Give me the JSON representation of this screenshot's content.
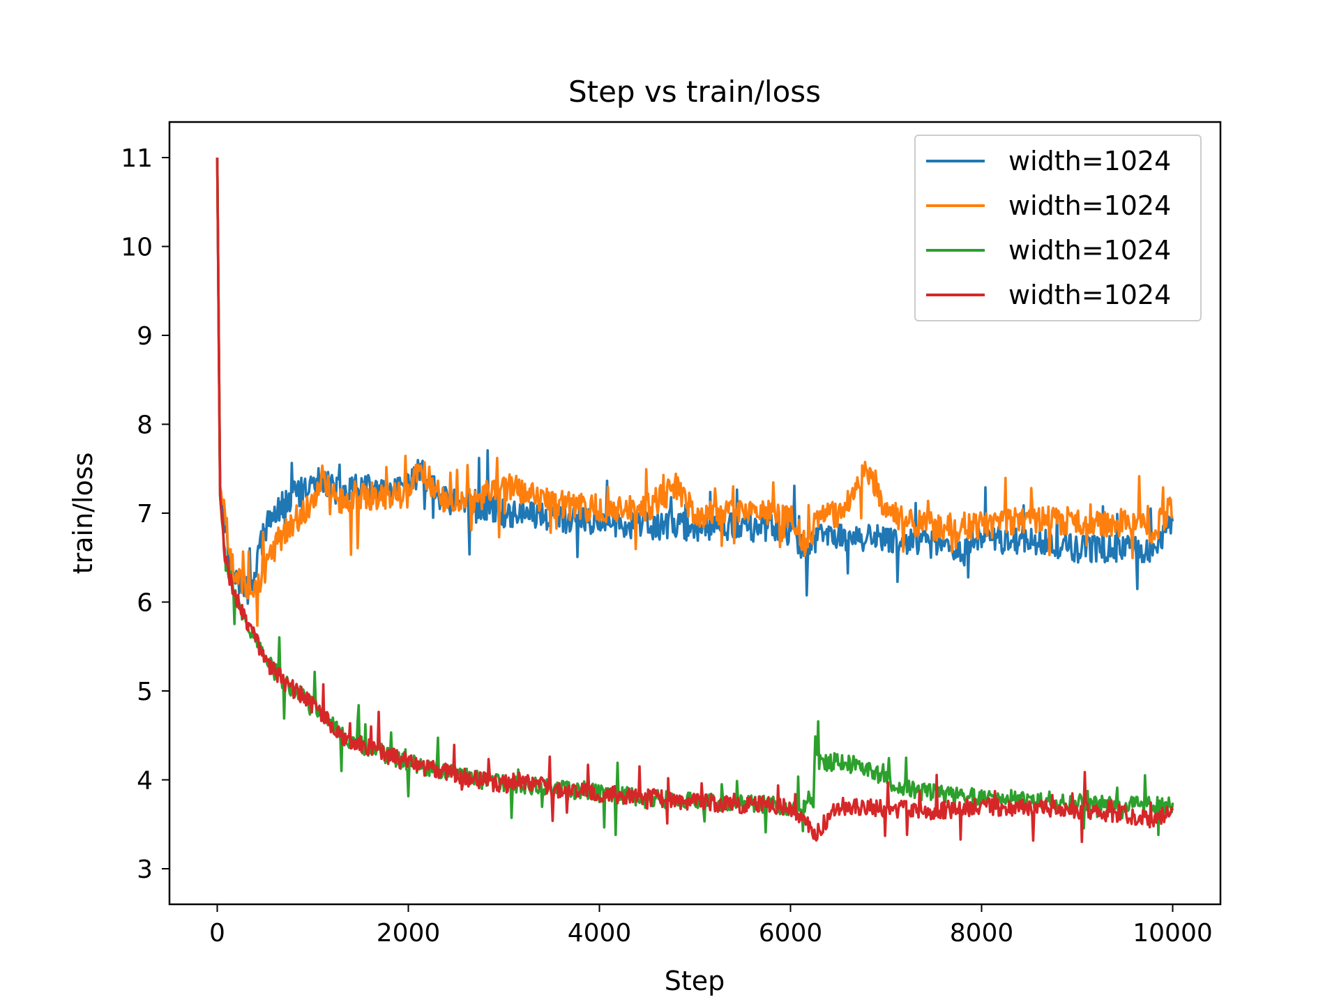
{
  "chart_data": {
    "type": "line",
    "title": "Step vs train/loss",
    "xlabel": "Step",
    "ylabel": "train/loss",
    "xlim": [
      -500,
      10500
    ],
    "ylim": [
      2.6,
      11.4
    ],
    "xticks": [
      0,
      2000,
      4000,
      6000,
      8000,
      10000
    ],
    "yticks": [
      3,
      4,
      5,
      6,
      7,
      8,
      9,
      10,
      11
    ],
    "grid": false,
    "legend_position": "top-right",
    "series": [
      {
        "name": "width=1024",
        "color": "#1f77b4",
        "x": [
          0,
          30,
          80,
          150,
          250,
          350,
          420,
          500,
          600,
          700,
          800,
          1000,
          1100,
          1300,
          1500,
          1800,
          2000,
          2130,
          2300,
          2500,
          2700,
          3000,
          3200,
          3500,
          3800,
          4000,
          4500,
          5000,
          5500,
          6000,
          6150,
          6300,
          6500,
          7000,
          7500,
          7800,
          8000,
          8500,
          9000,
          9500,
          9800,
          10000
        ],
        "y": [
          11.0,
          7.3,
          6.9,
          6.3,
          6.2,
          6.1,
          6.5,
          6.8,
          7.0,
          7.1,
          7.2,
          7.3,
          7.4,
          7.2,
          7.3,
          7.2,
          7.3,
          7.5,
          7.2,
          7.1,
          7.1,
          7.0,
          7.0,
          6.95,
          6.9,
          6.9,
          6.85,
          6.85,
          6.85,
          6.8,
          6.55,
          6.75,
          6.75,
          6.7,
          6.65,
          6.55,
          6.7,
          6.7,
          6.6,
          6.6,
          6.6,
          6.9
        ]
      },
      {
        "name": "width=1024",
        "color": "#ff7f0e",
        "x": [
          0,
          30,
          80,
          150,
          250,
          350,
          450,
          550,
          650,
          800,
          1000,
          1100,
          1300,
          1600,
          2000,
          2130,
          2400,
          2800,
          3100,
          3500,
          4000,
          4500,
          4800,
          5000,
          5500,
          6000,
          6150,
          6300,
          6500,
          6830,
          7000,
          7500,
          8000,
          8500,
          9000,
          9500,
          9800,
          10000
        ],
        "y": [
          11.0,
          7.3,
          7.0,
          6.4,
          6.2,
          6.1,
          6.2,
          6.5,
          6.7,
          6.9,
          7.1,
          7.4,
          7.1,
          7.2,
          7.2,
          7.5,
          7.1,
          7.2,
          7.3,
          7.1,
          7.05,
          7.05,
          7.3,
          7.0,
          7.0,
          7.0,
          6.65,
          6.95,
          7.0,
          7.5,
          7.0,
          6.85,
          6.85,
          6.95,
          6.9,
          6.9,
          6.8,
          7.1
        ]
      },
      {
        "name": "width=1024",
        "color": "#2ca02c",
        "x": [
          0,
          30,
          80,
          150,
          250,
          350,
          500,
          700,
          1000,
          1300,
          1600,
          2000,
          2500,
          3000,
          3500,
          4000,
          4500,
          5000,
          5500,
          6000,
          6240,
          6260,
          6300,
          6500,
          6800,
          7000,
          7200,
          7500,
          8000,
          8500,
          9000,
          9500,
          10000
        ],
        "y": [
          11.0,
          7.2,
          6.5,
          6.2,
          5.9,
          5.7,
          5.35,
          5.1,
          4.85,
          4.5,
          4.35,
          4.2,
          4.05,
          3.95,
          3.9,
          3.85,
          3.8,
          3.75,
          3.75,
          3.7,
          3.75,
          4.55,
          4.2,
          4.2,
          4.15,
          4.0,
          3.9,
          3.85,
          3.8,
          3.78,
          3.75,
          3.72,
          3.7
        ]
      },
      {
        "name": "width=1024",
        "color": "#d62728",
        "x": [
          0,
          30,
          80,
          150,
          250,
          350,
          500,
          700,
          1000,
          1300,
          1600,
          2000,
          2500,
          3000,
          3200,
          3500,
          4000,
          4500,
          5000,
          5500,
          6000,
          6270,
          6500,
          7000,
          7500,
          8000,
          8500,
          9000,
          9500,
          9800,
          10000
        ],
        "y": [
          11.0,
          7.2,
          6.5,
          6.2,
          5.9,
          5.7,
          5.35,
          5.1,
          4.85,
          4.5,
          4.35,
          4.2,
          4.05,
          3.95,
          4.0,
          3.9,
          3.85,
          3.8,
          3.75,
          3.72,
          3.7,
          3.4,
          3.7,
          3.68,
          3.65,
          3.7,
          3.68,
          3.65,
          3.62,
          3.55,
          3.65
        ]
      }
    ]
  }
}
